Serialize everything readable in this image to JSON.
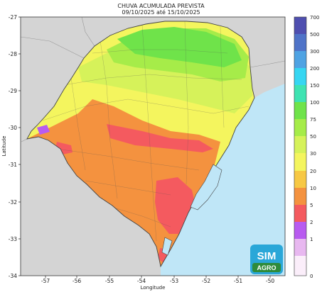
{
  "title": {
    "line1": "CHUVA ACUMULADA PREVISTA",
    "line2": "09/10/2025 até 15/10/2025"
  },
  "axes": {
    "xlabel": "Longitude",
    "ylabel": "Latitude",
    "xticks": [
      "-57",
      "-56",
      "-55",
      "-54",
      "-53",
      "-52",
      "-51",
      "-50"
    ],
    "yticks": [
      "-27",
      "-28",
      "-29",
      "-30",
      "-31",
      "-32",
      "-33",
      "-34"
    ]
  },
  "colorbar": {
    "labels": [
      "700",
      "500",
      "300",
      "200",
      "150",
      "100",
      "75",
      "50",
      "30",
      "20",
      "10",
      "5",
      "2",
      "1",
      "0"
    ],
    "colors": [
      "#4f4fb0",
      "#4f73c8",
      "#4fa3e3",
      "#36d6f2",
      "#3ee3b2",
      "#6fe34a",
      "#a6ec49",
      "#d6f25a",
      "#f4f55e",
      "#f7c844",
      "#f4923f",
      "#f45a5f",
      "#b85bf0",
      "#e8b8f0",
      "#fbeefa"
    ]
  },
  "map": {
    "ocean_color": "#bfe6f7",
    "land_outside_color": "#d4d4d4",
    "lake_color": "#bfe6f7"
  },
  "logo": {
    "line1": "SIM",
    "line2": "AGRO"
  }
}
